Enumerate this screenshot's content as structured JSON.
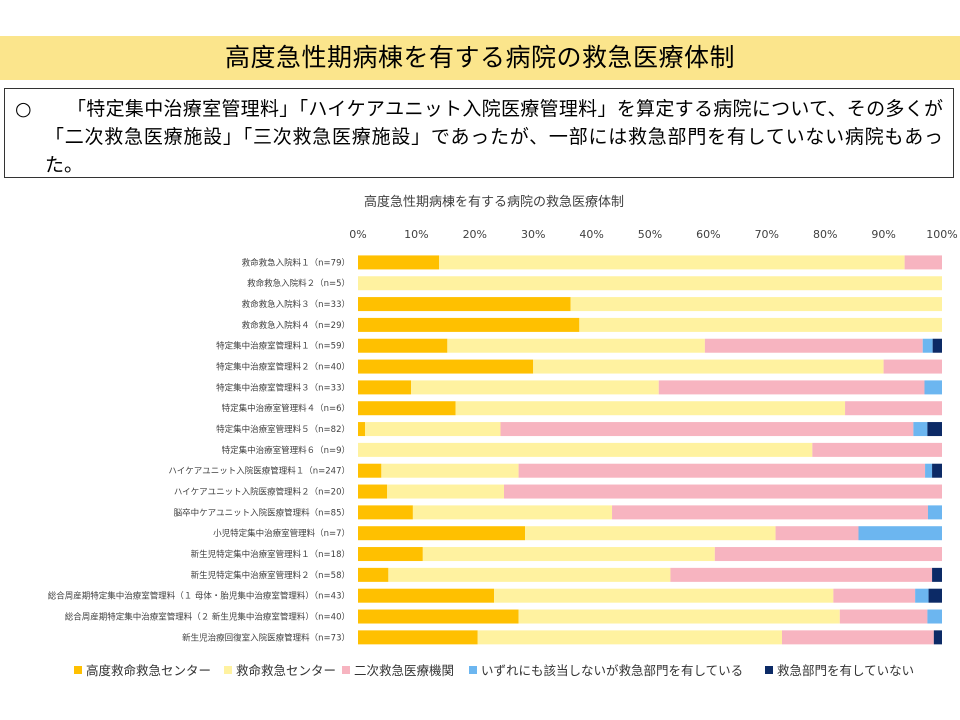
{
  "slide": {
    "title": "高度急性期病棟を有する病院の救急医療体制",
    "bullet": "○",
    "summary": "「特定集中治療室管理料」「ハイケアユニット入院医療管理料」を算定する病院について、その多くが「二次救急医療施設」「三次救急医療施設」であったが、一部には救急部門を有していない病院もあった。"
  },
  "chart_data": {
    "type": "bar",
    "orientation": "horizontal",
    "stacked": true,
    "percent_stacked": true,
    "title": "高度急性期病棟を有する病院の救急医療体制",
    "xlim": [
      0,
      100
    ],
    "xticks": [
      "0%",
      "10%",
      "20%",
      "30%",
      "40%",
      "50%",
      "60%",
      "70%",
      "80%",
      "90%",
      "100%"
    ],
    "xaxis_position": "top",
    "grid": false,
    "legend_position": "bottom",
    "categories": [
      "救命救急入院料１（n=79）",
      "救命救急入院料２（n=5）",
      "救命救急入院料３（n=33）",
      "救命救急入院料４（n=29）",
      "特定集中治療室管理料１（n=59）",
      "特定集中治療室管理料２（n=40）",
      "特定集中治療室管理料３（n=33）",
      "特定集中治療室管理料４（n=6）",
      "特定集中治療室管理料５（n=82）",
      "特定集中治療室管理料６（n=9）",
      "ハイケアユニット入院医療管理料１（n=247）",
      "ハイケアユニット入院医療管理料２（n=20）",
      "脳卒中ケアユニット入院医療管理料（n=85）",
      "小児特定集中治療室管理料（n=7）",
      "新生児特定集中治療室管理料１（n=18）",
      "新生児特定集中治療室管理料２（n=58）",
      "総合周産期特定集中治療室管理料（１ 母体・胎児集中治療室管理料）（n=43）",
      "総合周産期特定集中治療室管理料（２ 新生児集中治療室管理料）（n=40）",
      "新生児治療回復室入院医療管理料（n=73）"
    ],
    "series": [
      {
        "name": "高度救命救急センター",
        "color": "#ffc000",
        "values": [
          13.9,
          0,
          36.4,
          37.9,
          15.3,
          30.0,
          9.1,
          16.7,
          1.2,
          0,
          4.0,
          5.0,
          9.4,
          28.6,
          11.1,
          5.2,
          23.3,
          27.5,
          20.5
        ]
      },
      {
        "name": "救命救急センター",
        "color": "#fff2a0",
        "values": [
          79.7,
          100,
          63.6,
          62.1,
          44.1,
          60.0,
          42.4,
          66.7,
          23.2,
          77.8,
          23.5,
          20.0,
          34.1,
          42.9,
          50.0,
          48.3,
          58.1,
          55.0,
          52.1
        ]
      },
      {
        "name": "二次救急医療機関",
        "color": "#f7b4c0",
        "values": [
          6.4,
          0,
          0,
          0,
          37.3,
          10.0,
          45.5,
          16.6,
          70.7,
          22.2,
          69.6,
          75.0,
          54.1,
          14.2,
          38.9,
          44.8,
          14.0,
          15.0,
          26.0
        ]
      },
      {
        "name": "いずれにも該当しないが救急部門を有している",
        "color": "#6cb6f0",
        "values": [
          0,
          0,
          0,
          0,
          1.7,
          0,
          3.0,
          0,
          2.4,
          0,
          1.2,
          0,
          2.4,
          14.3,
          0,
          0,
          2.3,
          2.5,
          0
        ]
      },
      {
        "name": "救急部門を有していない",
        "color": "#0c2a66",
        "values": [
          0,
          0,
          0,
          0,
          1.6,
          0,
          0,
          0,
          2.5,
          0,
          1.7,
          0,
          0,
          0,
          0,
          1.7,
          2.3,
          0,
          1.4
        ]
      }
    ]
  }
}
